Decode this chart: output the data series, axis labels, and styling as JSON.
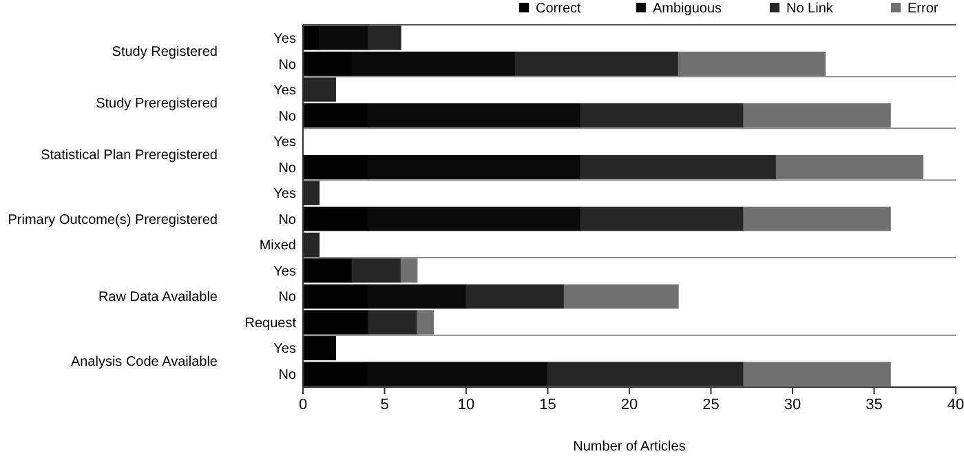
{
  "chart_data": {
    "type": "bar",
    "orientation": "horizontal",
    "stacked": true,
    "xlabel": "Number of Articles",
    "categories": [
      "Yes",
      "No",
      "Yes",
      "No",
      "Yes",
      "No",
      "Yes",
      "No",
      "Mixed",
      "Yes",
      "No",
      "Request",
      "Yes",
      "No"
    ],
    "annotations": [
      "Study Registered",
      "Study Preregistered",
      "Statistical Plan Preregistered",
      "Primary Outcome(s) Preregistered",
      "Raw Data Available",
      "Analysis Code Available"
    ],
    "series": [
      {
        "name": "Correct",
        "color": "#000000",
        "values": [
          1,
          3,
          0,
          4,
          0,
          4,
          0,
          4,
          0,
          3,
          4,
          4,
          2,
          4
        ]
      },
      {
        "name": "Ambiguous",
        "color": "#0a0a0a",
        "values": [
          3,
          10,
          0,
          13,
          0,
          13,
          0,
          13,
          0,
          0,
          6,
          0,
          0,
          11
        ]
      },
      {
        "name": "No Link",
        "color": "#262626",
        "values": [
          2,
          10,
          2,
          10,
          0,
          12,
          1,
          10,
          1,
          3,
          6,
          3,
          0,
          12
        ]
      },
      {
        "name": "Error",
        "color": "#707070",
        "values": [
          0,
          9,
          0,
          9,
          0,
          9,
          0,
          9,
          0,
          1,
          7,
          1,
          0,
          9
        ]
      }
    ],
    "xlim": [
      0,
      40
    ],
    "xticks": [
      0,
      5,
      10,
      15,
      20,
      25,
      30,
      35,
      40
    ],
    "legend": "top"
  }
}
